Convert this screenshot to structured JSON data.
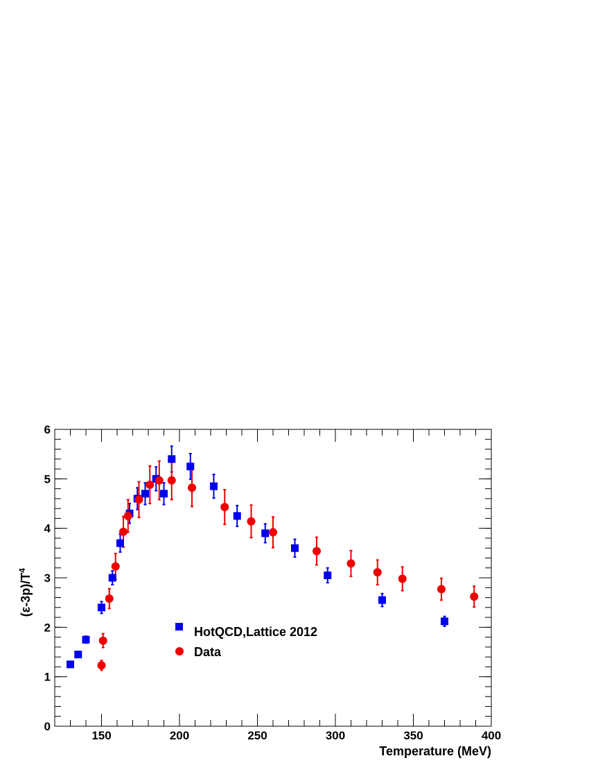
{
  "chart_data": {
    "type": "scatter",
    "xlabel": "Temperature (MeV)",
    "ylabel_main": "(ε-3p)/T",
    "ylabel_sup": "4",
    "xlim": [
      120,
      400
    ],
    "ylim": [
      0,
      6
    ],
    "x_ticks": [
      150,
      200,
      250,
      300,
      350,
      400
    ],
    "y_ticks": [
      0,
      1,
      2,
      3,
      4,
      5,
      6
    ],
    "grid": false,
    "legend_position": "lower-center",
    "series": [
      {
        "name": "HotQCD,Lattice 2012",
        "marker": "square",
        "color": "#0000ee",
        "points": [
          {
            "x": 130,
            "y": 1.25,
            "err": 0.04
          },
          {
            "x": 135,
            "y": 1.45,
            "err": 0.04
          },
          {
            "x": 140,
            "y": 1.75,
            "err": 0.07
          },
          {
            "x": 150,
            "y": 2.4,
            "err": 0.12
          },
          {
            "x": 157,
            "y": 3.0,
            "err": 0.14
          },
          {
            "x": 162,
            "y": 3.7,
            "err": 0.18
          },
          {
            "x": 168,
            "y": 4.3,
            "err": 0.2
          },
          {
            "x": 173,
            "y": 4.6,
            "err": 0.22
          },
          {
            "x": 178,
            "y": 4.7,
            "err": 0.22
          },
          {
            "x": 185,
            "y": 5.0,
            "err": 0.24
          },
          {
            "x": 190,
            "y": 4.7,
            "err": 0.22
          },
          {
            "x": 195,
            "y": 5.4,
            "err": 0.26
          },
          {
            "x": 207,
            "y": 5.25,
            "err": 0.26
          },
          {
            "x": 222,
            "y": 4.85,
            "err": 0.24
          },
          {
            "x": 237,
            "y": 4.25,
            "err": 0.21
          },
          {
            "x": 255,
            "y": 3.9,
            "err": 0.19
          },
          {
            "x": 274,
            "y": 3.6,
            "err": 0.18
          },
          {
            "x": 295,
            "y": 3.05,
            "err": 0.15
          },
          {
            "x": 330,
            "y": 2.55,
            "err": 0.13
          },
          {
            "x": 370,
            "y": 2.12,
            "err": 0.1
          }
        ]
      },
      {
        "name": "Data",
        "marker": "circle",
        "color": "#ee0000",
        "points": [
          {
            "x": 150,
            "y": 1.23,
            "err": 0.1
          },
          {
            "x": 151,
            "y": 1.73,
            "err": 0.14
          },
          {
            "x": 155,
            "y": 2.58,
            "err": 0.2
          },
          {
            "x": 159,
            "y": 3.23,
            "err": 0.26
          },
          {
            "x": 164,
            "y": 3.93,
            "err": 0.31
          },
          {
            "x": 167,
            "y": 4.25,
            "err": 0.33
          },
          {
            "x": 174,
            "y": 4.58,
            "err": 0.36
          },
          {
            "x": 181,
            "y": 4.88,
            "err": 0.38
          },
          {
            "x": 187,
            "y": 4.97,
            "err": 0.39
          },
          {
            "x": 195,
            "y": 4.97,
            "err": 0.39
          },
          {
            "x": 208,
            "y": 4.82,
            "err": 0.38
          },
          {
            "x": 229,
            "y": 4.43,
            "err": 0.35
          },
          {
            "x": 246,
            "y": 4.14,
            "err": 0.33
          },
          {
            "x": 260,
            "y": 3.92,
            "err": 0.31
          },
          {
            "x": 288,
            "y": 3.54,
            "err": 0.28
          },
          {
            "x": 310,
            "y": 3.29,
            "err": 0.26
          },
          {
            "x": 327,
            "y": 3.11,
            "err": 0.25
          },
          {
            "x": 343,
            "y": 2.98,
            "err": 0.24
          },
          {
            "x": 368,
            "y": 2.77,
            "err": 0.22
          },
          {
            "x": 389,
            "y": 2.62,
            "err": 0.21
          }
        ]
      }
    ]
  }
}
